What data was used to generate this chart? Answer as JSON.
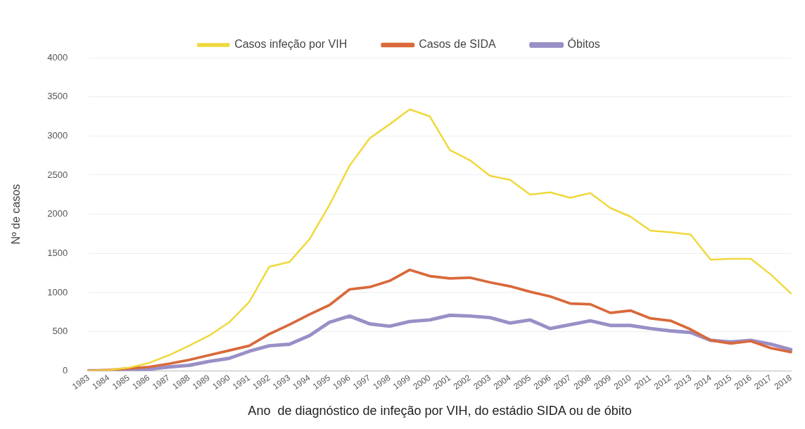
{
  "chart_data": {
    "type": "line",
    "xlabel": "Ano  de diagnóstico de infeção por VIH, do estádio SIDA ou de óbito",
    "ylabel": "Nº de casos",
    "categories": [
      "1983",
      "1984",
      "1985",
      "1986",
      "1987",
      "1988",
      "1989",
      "1990",
      "1991",
      "1992",
      "1993",
      "1994",
      "1995",
      "1996",
      "1997",
      "1998",
      "1999",
      "2000",
      "2001",
      "2002",
      "2003",
      "2004",
      "2005",
      "2006",
      "2007",
      "2008",
      "2009",
      "2010",
      "2011",
      "2012",
      "2013",
      "2014",
      "2015",
      "2016",
      "2017",
      "2018"
    ],
    "series": [
      {
        "name": "Casos infeção por VIH",
        "color": "#f0d83c",
        "values": [
          0,
          10,
          40,
          100,
          200,
          320,
          450,
          620,
          880,
          1330,
          1390,
          1680,
          2120,
          2620,
          2970,
          3150,
          3340,
          3250,
          2820,
          2690,
          2490,
          2440,
          2250,
          2280,
          2210,
          2270,
          2080,
          1970,
          1790,
          1770,
          1740,
          1420,
          1430,
          1430,
          1230,
          990
        ]
      },
      {
        "name": "Casos de SIDA",
        "color": "#d9693a",
        "values": [
          0,
          10,
          30,
          50,
          90,
          140,
          200,
          260,
          320,
          470,
          590,
          720,
          840,
          1040,
          1070,
          1150,
          1290,
          1210,
          1180,
          1190,
          1130,
          1080,
          1010,
          950,
          860,
          850,
          740,
          770,
          670,
          640,
          530,
          390,
          350,
          380,
          290,
          240
        ]
      },
      {
        "name": "Óbitos",
        "color": "#9a8fc6",
        "values": [
          0,
          0,
          10,
          20,
          50,
          70,
          120,
          160,
          250,
          320,
          340,
          450,
          620,
          700,
          600,
          570,
          630,
          650,
          710,
          700,
          680,
          610,
          650,
          540,
          590,
          640,
          580,
          580,
          540,
          510,
          490,
          390,
          370,
          390,
          340,
          270
        ]
      }
    ],
    "ylim": [
      0,
      4000
    ],
    "yticks": [
      0,
      500,
      1000,
      1500,
      2000,
      2500,
      3000,
      3500,
      4000
    ],
    "grid": "y",
    "legend": "top",
    "marker": "none",
    "line_style": "solid"
  }
}
